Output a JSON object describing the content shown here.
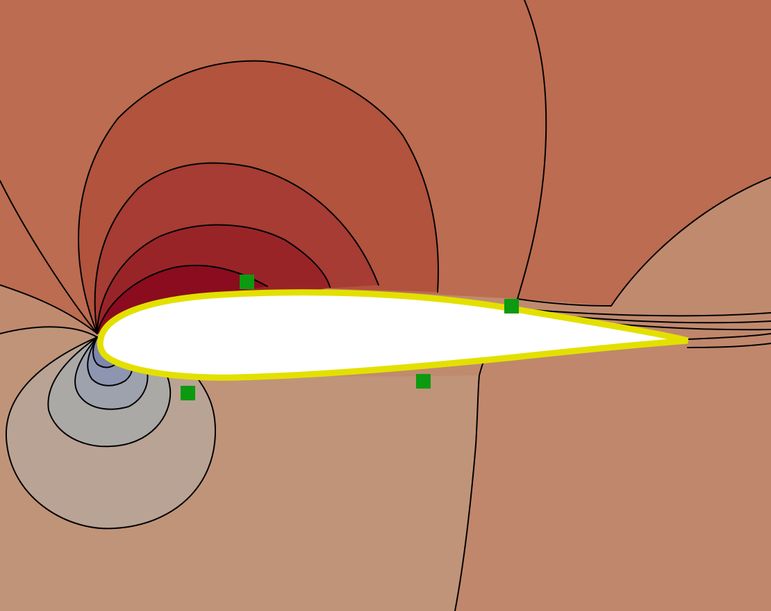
{
  "colors": {
    "background_far_field": "#c08a6f",
    "upper_region_base": "#bc6c50",
    "upper_level_1": "#b1533d",
    "upper_level_2": "#a63c33",
    "upper_level_3": "#992428",
    "upper_level_4": "#8a0c1e",
    "lower_region_base": "#c09479",
    "lower_level_1": "#b9a394",
    "lower_level_2": "#aba9a6",
    "lower_level_3": "#9ea2ad",
    "lower_level_4": "#8d95b0",
    "lower_level_5": "#7c86ae",
    "wake_region": "#c0876c",
    "airfoil_body": "#ffffff",
    "airfoil_outline": "#e3e000",
    "contour_line": "#000000",
    "probe_marker": "#0b9a10"
  },
  "probes": [
    {
      "id": "probe-upper-leading"
    },
    {
      "id": "probe-upper-trailing"
    },
    {
      "id": "probe-lower-leading"
    },
    {
      "id": "probe-lower-mid"
    }
  ]
}
